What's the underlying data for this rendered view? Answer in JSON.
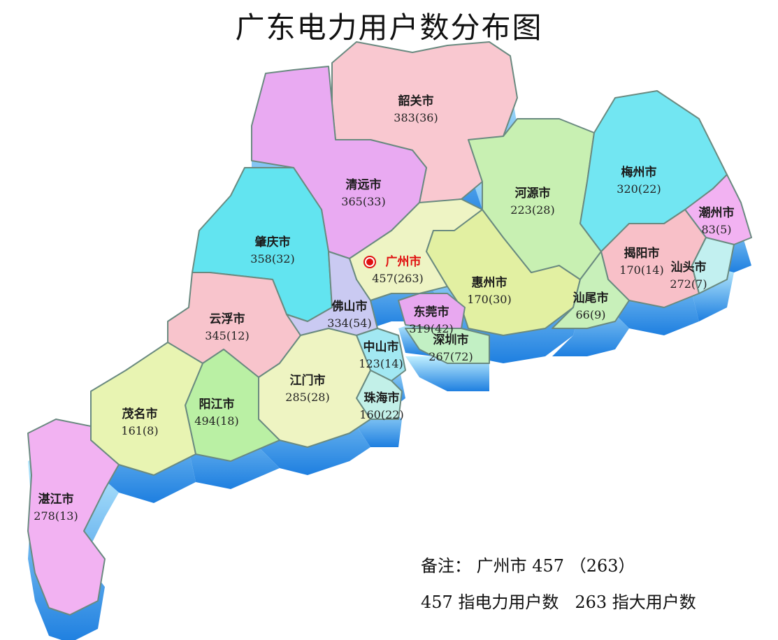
{
  "title": "广东电力用户数分布图",
  "capital_marker_color": "#e01010",
  "extrusion_colors": [
    "#bfefff",
    "#1e7fe0"
  ],
  "regions": [
    {
      "name": "韶关市",
      "value": "383(36)",
      "total": 383,
      "large": 36,
      "color": "#f9c8d0"
    },
    {
      "name": "清远市",
      "value": "365(33)",
      "total": 365,
      "large": 33,
      "color": "#e9aaf2"
    },
    {
      "name": "肇庆市",
      "value": "358(32)",
      "total": 358,
      "large": 32,
      "color": "#62e4f0"
    },
    {
      "name": "云浮市",
      "value": "345(12)",
      "total": 345,
      "large": 12,
      "color": "#f8c4cc"
    },
    {
      "name": "广州市",
      "value": "457(263)",
      "total": 457,
      "large": 263,
      "color": "#eef4c4",
      "capital": true
    },
    {
      "name": "惠州市",
      "value": "170(30)",
      "total": 170,
      "large": 30,
      "color": "#e2f0a2"
    },
    {
      "name": "河源市",
      "value": "223(28)",
      "total": 223,
      "large": 28,
      "color": "#c8f0b2"
    },
    {
      "name": "梅州市",
      "value": "320(22)",
      "total": 320,
      "large": 22,
      "color": "#72e6f2"
    },
    {
      "name": "潮州市",
      "value": "83(5)",
      "total": 83,
      "large": 5,
      "color": "#f2b2f2"
    },
    {
      "name": "揭阳市",
      "value": "170(14)",
      "total": 170,
      "large": 14,
      "color": "#f8c0c8"
    },
    {
      "name": "汕头市",
      "value": "272(7)",
      "total": 272,
      "large": 7,
      "color": "#c2f0f0"
    },
    {
      "name": "汕尾市",
      "value": "66(9)",
      "total": 66,
      "large": 9,
      "color": "#c8f0ba"
    },
    {
      "name": "东莞市",
      "value": "319(42)",
      "total": 319,
      "large": 42,
      "color": "#e8a8f0"
    },
    {
      "name": "深圳市",
      "value": "267(72)",
      "total": 267,
      "large": 72,
      "color": "#c2f0c4"
    },
    {
      "name": "佛山市",
      "value": "334(54)",
      "total": 334,
      "large": 54,
      "color": "#cacaf2"
    },
    {
      "name": "中山市",
      "value": "123(14)",
      "total": 123,
      "large": 14,
      "color": "#a2e8f2"
    },
    {
      "name": "珠海市",
      "value": "160(22)",
      "total": 160,
      "large": 22,
      "color": "#c2f0e8"
    },
    {
      "name": "江门市",
      "value": "285(28)",
      "total": 285,
      "large": 28,
      "color": "#eef4c2"
    },
    {
      "name": "阳江市",
      "value": "494(18)",
      "total": 494,
      "large": 18,
      "color": "#baf0a4"
    },
    {
      "name": "茂名市",
      "value": "161(8)",
      "total": 161,
      "large": 8,
      "color": "#e8f4b2"
    },
    {
      "name": "湛江市",
      "value": "278(13)",
      "total": 278,
      "large": 13,
      "color": "#f2b2f2"
    }
  ],
  "note": {
    "line1": "备注： 广州市 457 （263）",
    "line2": "457 指电力用户数   263 指大用户数"
  }
}
